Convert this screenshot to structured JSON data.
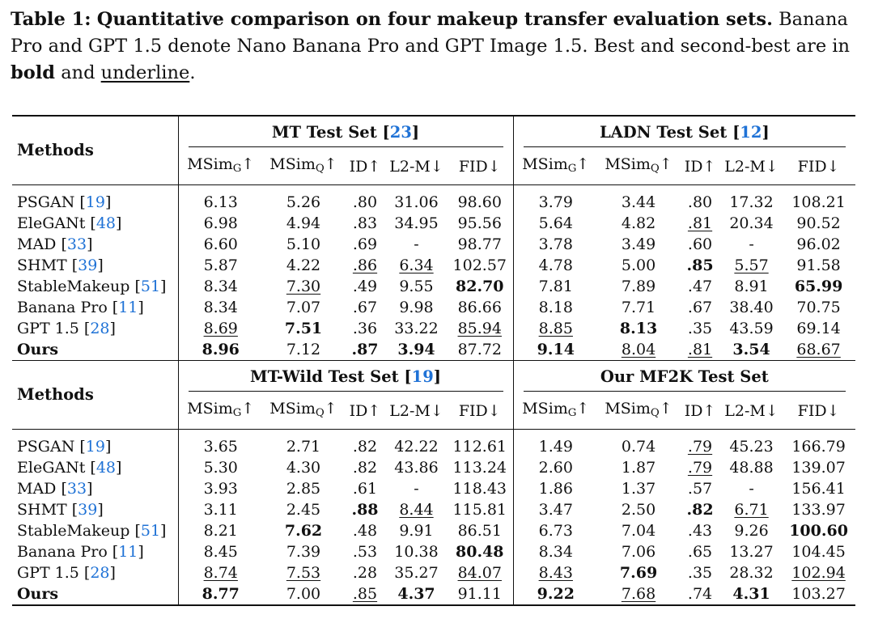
{
  "caption": {
    "label": "Table 1:",
    "title": "Quantitative comparison on four makeup transfer evaluation sets.",
    "text1": "Banana Pro and GPT 1.5 denote Nano Banana Pro and GPT Image 1.5. Best and second-best are in",
    "bold_word": "bold",
    "and_word": "and",
    "underline_word": "underline",
    "end": "."
  },
  "methods_header": "Methods",
  "columns": [
    {
      "base": "MSim",
      "sub": "G",
      "arrow": "↑"
    },
    {
      "base": "MSim",
      "sub": "Q",
      "arrow": "↑"
    },
    {
      "base": "ID",
      "sub": "",
      "arrow": "↑"
    },
    {
      "base": "L2-M",
      "sub": "",
      "arrow": "↓"
    },
    {
      "base": "FID",
      "sub": "",
      "arrow": "↓"
    }
  ],
  "blocks": [
    {
      "left_set": {
        "name": "MT Test Set",
        "ref": "23"
      },
      "right_set": {
        "name": "LADN Test Set",
        "ref": "12"
      },
      "rows": [
        {
          "name": "PSGAN",
          "ref": "19",
          "left": [
            {
              "v": "6.13"
            },
            {
              "v": "5.26"
            },
            {
              "v": ".80"
            },
            {
              "v": "31.06"
            },
            {
              "v": "98.60"
            }
          ],
          "right": [
            {
              "v": "3.79"
            },
            {
              "v": "3.44"
            },
            {
              "v": ".80"
            },
            {
              "v": "17.32"
            },
            {
              "v": "108.21"
            }
          ]
        },
        {
          "name": "EleGANt",
          "ref": "48",
          "left": [
            {
              "v": "6.98"
            },
            {
              "v": "4.94"
            },
            {
              "v": ".83"
            },
            {
              "v": "34.95"
            },
            {
              "v": "95.56"
            }
          ],
          "right": [
            {
              "v": "5.64"
            },
            {
              "v": "4.82"
            },
            {
              "v": ".81",
              "s": "u"
            },
            {
              "v": "20.34"
            },
            {
              "v": "90.52"
            }
          ]
        },
        {
          "name": "MAD",
          "ref": "33",
          "left": [
            {
              "v": "6.60"
            },
            {
              "v": "5.10"
            },
            {
              "v": ".69"
            },
            {
              "v": "-"
            },
            {
              "v": "98.77"
            }
          ],
          "right": [
            {
              "v": "3.78"
            },
            {
              "v": "3.49"
            },
            {
              "v": ".60"
            },
            {
              "v": "-"
            },
            {
              "v": "96.02"
            }
          ]
        },
        {
          "name": "SHMT",
          "ref": "39",
          "left": [
            {
              "v": "5.87"
            },
            {
              "v": "4.22"
            },
            {
              "v": ".86",
              "s": "u"
            },
            {
              "v": "6.34",
              "s": "u"
            },
            {
              "v": "102.57"
            }
          ],
          "right": [
            {
              "v": "4.78"
            },
            {
              "v": "5.00"
            },
            {
              "v": ".85",
              "s": "b"
            },
            {
              "v": "5.57",
              "s": "u"
            },
            {
              "v": "91.58"
            }
          ]
        },
        {
          "name": "StableMakeup",
          "ref": "51",
          "left": [
            {
              "v": "8.34"
            },
            {
              "v": "7.30",
              "s": "u"
            },
            {
              "v": ".49"
            },
            {
              "v": "9.55"
            },
            {
              "v": "82.70",
              "s": "b"
            }
          ],
          "right": [
            {
              "v": "7.81"
            },
            {
              "v": "7.89"
            },
            {
              "v": ".47"
            },
            {
              "v": "8.91"
            },
            {
              "v": "65.99",
              "s": "b"
            }
          ]
        },
        {
          "name": "Banana Pro",
          "ref": "11",
          "left": [
            {
              "v": "8.34"
            },
            {
              "v": "7.07"
            },
            {
              "v": ".67"
            },
            {
              "v": "9.98"
            },
            {
              "v": "86.66"
            }
          ],
          "right": [
            {
              "v": "8.18"
            },
            {
              "v": "7.71"
            },
            {
              "v": ".67"
            },
            {
              "v": "38.40"
            },
            {
              "v": "70.75"
            }
          ]
        },
        {
          "name": "GPT 1.5",
          "ref": "28",
          "left": [
            {
              "v": "8.69",
              "s": "u"
            },
            {
              "v": "7.51",
              "s": "b"
            },
            {
              "v": ".36"
            },
            {
              "v": "33.22"
            },
            {
              "v": "85.94",
              "s": "u"
            }
          ],
          "right": [
            {
              "v": "8.85",
              "s": "u"
            },
            {
              "v": "8.13",
              "s": "b"
            },
            {
              "v": ".35"
            },
            {
              "v": "43.59"
            },
            {
              "v": "69.14"
            }
          ]
        },
        {
          "name": "Ours",
          "ref": "",
          "bold": true,
          "left": [
            {
              "v": "8.96",
              "s": "b"
            },
            {
              "v": "7.12"
            },
            {
              "v": ".87",
              "s": "b"
            },
            {
              "v": "3.94",
              "s": "b"
            },
            {
              "v": "87.72"
            }
          ],
          "right": [
            {
              "v": "9.14",
              "s": "b"
            },
            {
              "v": "8.04",
              "s": "u"
            },
            {
              "v": ".81",
              "s": "u"
            },
            {
              "v": "3.54",
              "s": "b"
            },
            {
              "v": "68.67",
              "s": "u"
            }
          ]
        }
      ]
    },
    {
      "left_set": {
        "name": "MT-Wild Test Set",
        "ref": "19"
      },
      "right_set": {
        "name": "Our MF2K Test Set",
        "ref": ""
      },
      "rows": [
        {
          "name": "PSGAN",
          "ref": "19",
          "left": [
            {
              "v": "3.65"
            },
            {
              "v": "2.71"
            },
            {
              "v": ".82"
            },
            {
              "v": "42.22"
            },
            {
              "v": "112.61"
            }
          ],
          "right": [
            {
              "v": "1.49"
            },
            {
              "v": "0.74"
            },
            {
              "v": ".79",
              "s": "u"
            },
            {
              "v": "45.23"
            },
            {
              "v": "166.79"
            }
          ]
        },
        {
          "name": "EleGANt",
          "ref": "48",
          "left": [
            {
              "v": "5.30"
            },
            {
              "v": "4.30"
            },
            {
              "v": ".82"
            },
            {
              "v": "43.86"
            },
            {
              "v": "113.24"
            }
          ],
          "right": [
            {
              "v": "2.60"
            },
            {
              "v": "1.87"
            },
            {
              "v": ".79",
              "s": "u"
            },
            {
              "v": "48.88"
            },
            {
              "v": "139.07"
            }
          ]
        },
        {
          "name": "MAD",
          "ref": "33",
          "left": [
            {
              "v": "3.93"
            },
            {
              "v": "2.85"
            },
            {
              "v": ".61"
            },
            {
              "v": "-"
            },
            {
              "v": "118.43"
            }
          ],
          "right": [
            {
              "v": "1.86"
            },
            {
              "v": "1.37"
            },
            {
              "v": ".57"
            },
            {
              "v": "-"
            },
            {
              "v": "156.41"
            }
          ]
        },
        {
          "name": "SHMT",
          "ref": "39",
          "left": [
            {
              "v": "3.11"
            },
            {
              "v": "2.45"
            },
            {
              "v": ".88",
              "s": "b"
            },
            {
              "v": "8.44",
              "s": "u"
            },
            {
              "v": "115.81"
            }
          ],
          "right": [
            {
              "v": "3.47"
            },
            {
              "v": "2.50"
            },
            {
              "v": ".82",
              "s": "b"
            },
            {
              "v": "6.71",
              "s": "u"
            },
            {
              "v": "133.97"
            }
          ]
        },
        {
          "name": "StableMakeup",
          "ref": "51",
          "left": [
            {
              "v": "8.21"
            },
            {
              "v": "7.62",
              "s": "b"
            },
            {
              "v": ".48"
            },
            {
              "v": "9.91"
            },
            {
              "v": "86.51"
            }
          ],
          "right": [
            {
              "v": "6.73"
            },
            {
              "v": "7.04"
            },
            {
              "v": ".43"
            },
            {
              "v": "9.26"
            },
            {
              "v": "100.60",
              "s": "b"
            }
          ]
        },
        {
          "name": "Banana Pro",
          "ref": "11",
          "left": [
            {
              "v": "8.45"
            },
            {
              "v": "7.39"
            },
            {
              "v": ".53"
            },
            {
              "v": "10.38"
            },
            {
              "v": "80.48",
              "s": "b"
            }
          ],
          "right": [
            {
              "v": "8.34"
            },
            {
              "v": "7.06"
            },
            {
              "v": ".65"
            },
            {
              "v": "13.27"
            },
            {
              "v": "104.45"
            }
          ]
        },
        {
          "name": "GPT 1.5",
          "ref": "28",
          "left": [
            {
              "v": "8.74",
              "s": "u"
            },
            {
              "v": "7.53",
              "s": "u"
            },
            {
              "v": ".28"
            },
            {
              "v": "35.27"
            },
            {
              "v": "84.07",
              "s": "u"
            }
          ],
          "right": [
            {
              "v": "8.43",
              "s": "u"
            },
            {
              "v": "7.69",
              "s": "b"
            },
            {
              "v": ".35"
            },
            {
              "v": "28.32"
            },
            {
              "v": "102.94",
              "s": "u"
            }
          ]
        },
        {
          "name": "Ours",
          "ref": "",
          "bold": true,
          "left": [
            {
              "v": "8.77",
              "s": "b"
            },
            {
              "v": "7.00"
            },
            {
              "v": ".85",
              "s": "u"
            },
            {
              "v": "4.37",
              "s": "b"
            },
            {
              "v": "91.11"
            }
          ],
          "right": [
            {
              "v": "9.22",
              "s": "b"
            },
            {
              "v": "7.68",
              "s": "u"
            },
            {
              "v": ".74"
            },
            {
              "v": "4.31",
              "s": "b"
            },
            {
              "v": "103.27"
            }
          ]
        }
      ]
    }
  ],
  "colors": {
    "text": "#111111",
    "citation": "#1f72d6",
    "background": "#ffffff"
  }
}
